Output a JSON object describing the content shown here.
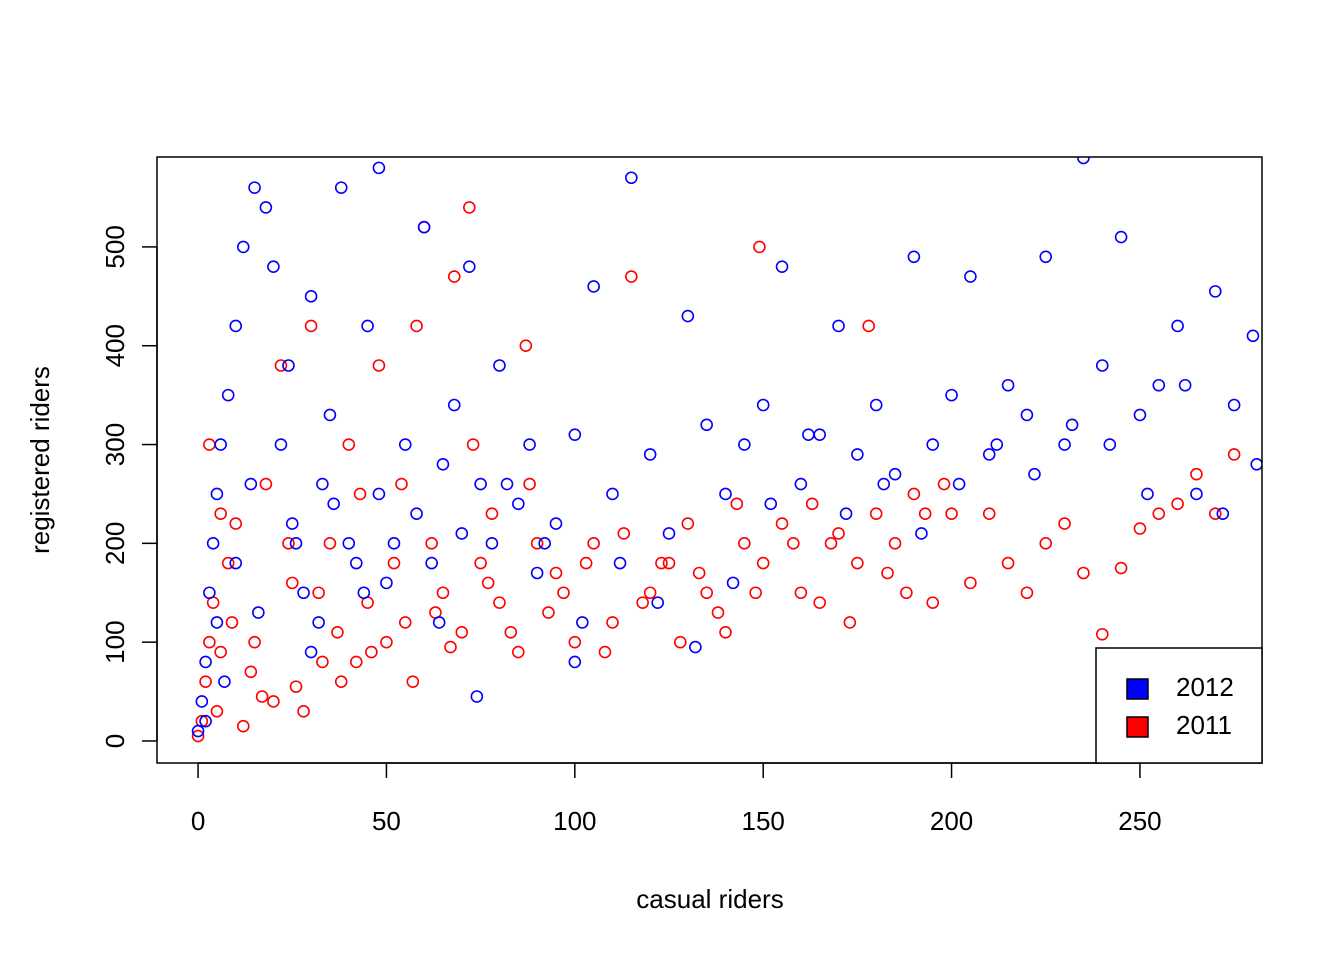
{
  "chart_data": {
    "type": "scatter",
    "x_label": "casual riders",
    "y_label": "registered riders",
    "xlim": [
      -10.9,
      282.4
    ],
    "ylim": [
      -22.3,
      591
    ],
    "xticks": [
      0,
      50,
      100,
      150,
      200,
      250
    ],
    "yticks": [
      0,
      100,
      200,
      300,
      400,
      500
    ],
    "legend": "bottomright",
    "series": [
      {
        "name": "2012",
        "color": "#0000ff",
        "x": [
          0,
          1,
          2,
          3,
          4,
          5,
          6,
          8,
          10,
          12,
          15,
          18,
          20,
          22,
          25,
          28,
          30,
          33,
          35,
          38,
          40,
          42,
          45,
          48,
          50,
          55,
          58,
          60,
          62,
          65,
          68,
          70,
          72,
          75,
          78,
          80,
          85,
          88,
          90,
          95,
          100,
          100,
          105,
          110,
          115,
          120,
          125,
          130,
          135,
          140,
          145,
          150,
          155,
          160,
          165,
          170,
          175,
          180,
          185,
          190,
          195,
          200,
          205,
          210,
          215,
          220,
          225,
          230,
          235,
          240,
          245,
          250,
          255,
          260,
          265,
          270,
          275,
          280,
          2,
          5,
          7,
          10,
          14,
          16,
          24,
          26,
          32,
          36,
          44,
          52,
          64,
          74,
          82,
          92,
          102,
          112,
          122,
          132,
          142,
          152,
          162,
          172,
          182,
          192,
          202,
          212,
          222,
          232,
          242,
          252,
          262,
          272,
          281,
          48,
          30
        ],
        "values": [
          10,
          40,
          80,
          150,
          200,
          250,
          300,
          350,
          420,
          500,
          560,
          540,
          480,
          300,
          220,
          150,
          90,
          260,
          330,
          560,
          200,
          180,
          420,
          250,
          160,
          300,
          230,
          520,
          180,
          280,
          340,
          210,
          480,
          260,
          200,
          380,
          240,
          300,
          170,
          220,
          80,
          310,
          460,
          250,
          570,
          290,
          210,
          430,
          320,
          250,
          300,
          340,
          480,
          260,
          310,
          420,
          290,
          340,
          270,
          490,
          300,
          350,
          470,
          290,
          360,
          330,
          490,
          300,
          590,
          380,
          510,
          330,
          360,
          420,
          250,
          455,
          340,
          410,
          20,
          120,
          60,
          180,
          260,
          130,
          380,
          200,
          120,
          240,
          150,
          200,
          120,
          45,
          260,
          200,
          120,
          180,
          140,
          95,
          160,
          240,
          310,
          230,
          260,
          210,
          260,
          300,
          270,
          320,
          300,
          250,
          360,
          230,
          280,
          580,
          450
        ]
      },
      {
        "name": "2011",
        "color": "#ff0000",
        "x": [
          0,
          1,
          2,
          3,
          4,
          5,
          6,
          8,
          10,
          12,
          15,
          18,
          20,
          22,
          25,
          28,
          30,
          33,
          35,
          38,
          40,
          42,
          45,
          48,
          50,
          52,
          55,
          58,
          60,
          62,
          65,
          68,
          70,
          72,
          75,
          78,
          80,
          85,
          88,
          90,
          95,
          100,
          105,
          110,
          115,
          120,
          125,
          130,
          135,
          140,
          145,
          149,
          150,
          155,
          160,
          165,
          170,
          175,
          178,
          180,
          185,
          190,
          195,
          200,
          205,
          210,
          215,
          220,
          225,
          230,
          235,
          240,
          245,
          250,
          255,
          260,
          265,
          270,
          275,
          3,
          6,
          9,
          14,
          17,
          24,
          26,
          32,
          37,
          43,
          46,
          54,
          57,
          63,
          67,
          73,
          77,
          83,
          87,
          93,
          97,
          103,
          108,
          113,
          118,
          123,
          128,
          133,
          138,
          143,
          148,
          158,
          163,
          168,
          173,
          183,
          188,
          193,
          198
        ],
        "values": [
          5,
          20,
          60,
          100,
          140,
          30,
          90,
          180,
          220,
          15,
          100,
          260,
          40,
          380,
          160,
          30,
          420,
          80,
          200,
          60,
          300,
          80,
          140,
          380,
          100,
          180,
          120,
          420,
          520,
          200,
          150,
          470,
          110,
          540,
          180,
          230,
          140,
          90,
          260,
          200,
          170,
          100,
          200,
          120,
          470,
          150,
          180,
          220,
          150,
          110,
          200,
          500,
          180,
          220,
          150,
          140,
          210,
          180,
          420,
          230,
          200,
          250,
          140,
          230,
          160,
          230,
          180,
          150,
          200,
          220,
          170,
          108,
          175,
          215,
          230,
          240,
          270,
          230,
          290,
          300,
          230,
          120,
          70,
          45,
          200,
          55,
          150,
          110,
          250,
          90,
          260,
          60,
          130,
          95,
          300,
          160,
          110,
          400,
          130,
          150,
          180,
          90,
          210,
          140,
          180,
          100,
          170,
          130,
          240,
          150,
          200,
          240,
          200,
          120,
          170,
          150,
          230,
          260
        ]
      }
    ]
  }
}
